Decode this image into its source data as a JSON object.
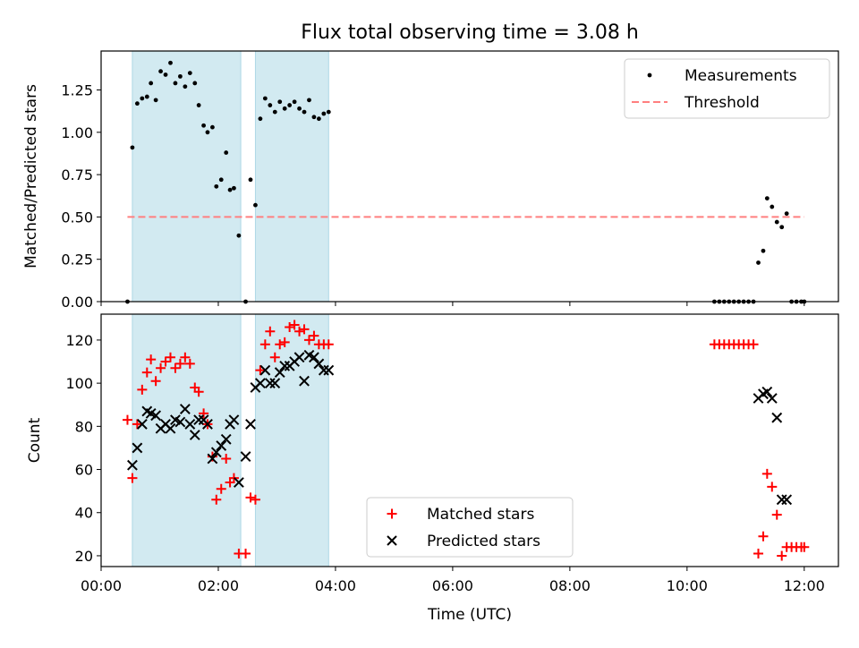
{
  "figure": {
    "title": "Flux total observing time = 3.08 h"
  },
  "chart_data": [
    {
      "type": "scatter",
      "ylabel": "Matched/Predicted stars",
      "xlabel": "",
      "xlim": [
        "00:00",
        "12:35"
      ],
      "ylim": [
        0,
        1.48
      ],
      "yticks": [
        "0.00",
        "0.25",
        "0.50",
        "0.75",
        "1.00",
        "1.25"
      ],
      "shaded_periods": [
        [
          "00:32",
          "02:23"
        ],
        [
          "02:38",
          "03:53"
        ]
      ],
      "shade_color": "#add8e6",
      "legend": {
        "placement": "upper right",
        "entries": [
          {
            "label": "Measurements",
            "marker": "dot",
            "color": "#000000"
          },
          {
            "label": "Threshold",
            "marker": "dashed-line",
            "color": "#ff7f7f"
          }
        ]
      },
      "threshold": {
        "y": 0.5,
        "x_start": "00:27",
        "x_end": "12:00",
        "color": "#ff7f7f"
      },
      "series": [
        {
          "name": "Measurements",
          "color": "#000000",
          "x": [
            "00:27",
            "00:32",
            "00:37",
            "00:42",
            "00:47",
            "00:51",
            "00:56",
            "01:01",
            "01:06",
            "01:11",
            "01:16",
            "01:21",
            "01:26",
            "01:31",
            "01:36",
            "01:40",
            "01:45",
            "01:49",
            "01:54",
            "01:58",
            "02:03",
            "02:08",
            "02:12",
            "02:16",
            "02:21",
            "02:28",
            "02:33",
            "02:38",
            "02:43",
            "02:48",
            "02:53",
            "02:58",
            "03:03",
            "03:08",
            "03:13",
            "03:18",
            "03:23",
            "03:28",
            "03:33",
            "03:38",
            "03:43",
            "03:48",
            "03:53",
            "10:28",
            "10:33",
            "10:38",
            "10:43",
            "10:48",
            "10:53",
            "10:58",
            "11:03",
            "11:08",
            "11:13",
            "11:18",
            "11:22",
            "11:27",
            "11:32",
            "11:37",
            "11:42",
            "11:47",
            "11:52",
            "11:57",
            "12:00"
          ],
          "y": [
            0.0,
            0.91,
            1.17,
            1.2,
            1.21,
            1.29,
            1.19,
            1.36,
            1.34,
            1.41,
            1.29,
            1.33,
            1.27,
            1.35,
            1.29,
            1.16,
            1.04,
            1.0,
            1.03,
            0.68,
            0.72,
            0.88,
            0.66,
            0.67,
            0.39,
            0.0,
            0.72,
            0.57,
            1.08,
            1.2,
            1.16,
            1.12,
            1.18,
            1.14,
            1.16,
            1.18,
            1.14,
            1.12,
            1.19,
            1.09,
            1.08,
            1.11,
            1.12,
            0.0,
            0.0,
            0.0,
            0.0,
            0.0,
            0.0,
            0.0,
            0.0,
            0.0,
            0.23,
            0.3,
            0.61,
            0.56,
            0.47,
            0.44,
            0.52,
            0.0,
            0.0,
            0.0,
            0.0
          ]
        }
      ]
    },
    {
      "type": "scatter",
      "ylabel": "Count",
      "xlabel": "Time (UTC)",
      "xlim": [
        "00:00",
        "12:35"
      ],
      "ylim": [
        15,
        132
      ],
      "yticks": [
        "20",
        "40",
        "60",
        "80",
        "100",
        "120"
      ],
      "xticks": [
        "00:00",
        "02:00",
        "04:00",
        "06:00",
        "08:00",
        "10:00",
        "12:00"
      ],
      "shaded_periods": [
        [
          "00:32",
          "02:23"
        ],
        [
          "02:38",
          "03:53"
        ]
      ],
      "shade_color": "#add8e6",
      "legend": {
        "placement": "lower center",
        "entries": [
          {
            "label": "Matched stars",
            "marker": "plus",
            "color": "#ff0000"
          },
          {
            "label": "Predicted stars",
            "marker": "x",
            "color": "#000000"
          }
        ]
      },
      "series": [
        {
          "name": "Matched stars",
          "color": "#ff0000",
          "marker": "plus",
          "x": [
            "00:27",
            "00:32",
            "00:37",
            "00:42",
            "00:47",
            "00:51",
            "00:56",
            "01:01",
            "01:06",
            "01:11",
            "01:16",
            "01:21",
            "01:26",
            "01:31",
            "01:36",
            "01:40",
            "01:45",
            "01:49",
            "01:54",
            "01:58",
            "02:03",
            "02:08",
            "02:12",
            "02:16",
            "02:21",
            "02:28",
            "02:33",
            "02:38",
            "02:43",
            "02:48",
            "02:53",
            "02:58",
            "03:03",
            "03:08",
            "03:13",
            "03:18",
            "03:23",
            "03:28",
            "03:33",
            "03:38",
            "03:43",
            "03:48",
            "03:53",
            "10:28",
            "10:33",
            "10:38",
            "10:43",
            "10:48",
            "10:53",
            "10:58",
            "11:03",
            "11:08",
            "11:13",
            "11:18",
            "11:22",
            "11:27",
            "11:32",
            "11:37",
            "11:42",
            "11:47",
            "11:52",
            "11:57",
            "12:00"
          ],
          "y": [
            83,
            56,
            81,
            97,
            105,
            111,
            101,
            107,
            110,
            112,
            107,
            109,
            112,
            109,
            98,
            96,
            86,
            81,
            66,
            46,
            51,
            65,
            54,
            56,
            21,
            21,
            47,
            46,
            106,
            118,
            124,
            112,
            118,
            119,
            126,
            127,
            124,
            125,
            120,
            122,
            118,
            118,
            118,
            118,
            118,
            118,
            118,
            118,
            118,
            118,
            118,
            118,
            21,
            29,
            58,
            52,
            39,
            20,
            24,
            24,
            24,
            24,
            24
          ]
        },
        {
          "name": "Predicted stars",
          "color": "#000000",
          "marker": "x",
          "x": [
            "00:32",
            "00:37",
            "00:42",
            "00:47",
            "00:51",
            "00:56",
            "01:01",
            "01:06",
            "01:11",
            "01:16",
            "01:21",
            "01:26",
            "01:31",
            "01:36",
            "01:40",
            "01:45",
            "01:49",
            "01:54",
            "01:58",
            "02:03",
            "02:08",
            "02:12",
            "02:16",
            "02:21",
            "02:28",
            "02:33",
            "02:38",
            "02:43",
            "02:48",
            "02:53",
            "02:58",
            "03:03",
            "03:08",
            "03:13",
            "03:18",
            "03:23",
            "03:28",
            "03:33",
            "03:38",
            "03:43",
            "03:48",
            "03:53",
            "11:13",
            "11:18",
            "11:22",
            "11:27",
            "11:32",
            "11:37",
            "11:42"
          ],
          "y": [
            62,
            70,
            81,
            87,
            86,
            85,
            79,
            81,
            79,
            83,
            82,
            88,
            81,
            76,
            83,
            83,
            81,
            65,
            68,
            71,
            74,
            81,
            83,
            54,
            66,
            81,
            98,
            100,
            106,
            100,
            100,
            105,
            108,
            108,
            110,
            112,
            101,
            113,
            112,
            109,
            106,
            106,
            93,
            95,
            96,
            93,
            84,
            46,
            46
          ]
        }
      ]
    }
  ]
}
